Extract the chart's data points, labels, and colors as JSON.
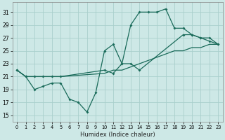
{
  "xlabel": "Humidex (Indice chaleur)",
  "background_color": "#cde8e6",
  "grid_color": "#aacfcc",
  "line_color": "#1a6b5a",
  "xlim": [
    -0.5,
    23.5
  ],
  "ylim": [
    14.0,
    32.5
  ],
  "xticks": [
    0,
    1,
    2,
    3,
    4,
    5,
    6,
    7,
    8,
    9,
    10,
    11,
    12,
    13,
    14,
    15,
    16,
    17,
    18,
    19,
    20,
    21,
    22,
    23
  ],
  "yticks": [
    15,
    17,
    19,
    21,
    23,
    25,
    27,
    29,
    31
  ],
  "line1_x": [
    0,
    1,
    2,
    3,
    4,
    5,
    6,
    7,
    8,
    9,
    10,
    11,
    12,
    13,
    14,
    15,
    16,
    17,
    18,
    19,
    20,
    21,
    22,
    23
  ],
  "line1_y": [
    22,
    21,
    19,
    19.5,
    20,
    20,
    17.5,
    17,
    15.5,
    18.5,
    25,
    26,
    23,
    29,
    31,
    31,
    31,
    31.5,
    28.5,
    28.5,
    27.5,
    27,
    26.5,
    26
  ],
  "line2_x": [
    0,
    1,
    2,
    3,
    4,
    5,
    10,
    11,
    12,
    13,
    14,
    19,
    20,
    21,
    22,
    23
  ],
  "line2_y": [
    22,
    21,
    21,
    21,
    21,
    21,
    22,
    21.5,
    23,
    23,
    22,
    27.5,
    27.5,
    27,
    27,
    26
  ],
  "line3_x": [
    0,
    1,
    2,
    3,
    4,
    5,
    10,
    11,
    12,
    13,
    14,
    18,
    19,
    20,
    21,
    22,
    23
  ],
  "line3_y": [
    22,
    21,
    21,
    21,
    21,
    21,
    21.5,
    22,
    22,
    22.5,
    23,
    25,
    25,
    25.5,
    25.5,
    26,
    26
  ]
}
